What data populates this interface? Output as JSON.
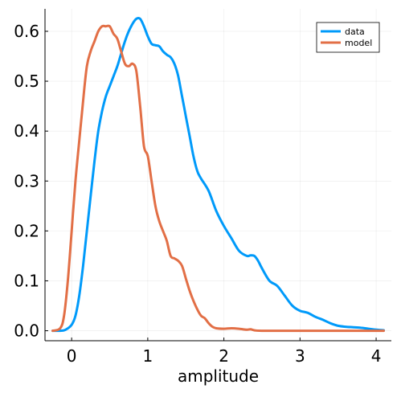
{
  "chart_data": {
    "type": "line",
    "title": "",
    "xlabel": "amplitude",
    "ylabel": "",
    "xlim": [
      -0.35,
      4.2
    ],
    "ylim": [
      -0.02,
      0.645
    ],
    "grid": true,
    "legend_position": "top-right",
    "x_ticks": [
      0,
      1,
      2,
      3,
      4
    ],
    "x_tick_labels": [
      "0",
      "1",
      "2",
      "3",
      "4"
    ],
    "y_ticks": [
      0.0,
      0.1,
      0.2,
      0.3,
      0.4,
      0.5,
      0.6
    ],
    "y_tick_labels": [
      "0.0",
      "0.1",
      "0.2",
      "0.3",
      "0.4",
      "0.5",
      "0.6"
    ],
    "series": [
      {
        "name": "data",
        "color": "#009AFA",
        "x": [
          -0.25,
          -0.15,
          -0.08,
          0.0,
          0.05,
          0.1,
          0.15,
          0.2,
          0.25,
          0.3,
          0.35,
          0.4,
          0.45,
          0.5,
          0.55,
          0.6,
          0.65,
          0.7,
          0.75,
          0.8,
          0.85,
          0.9,
          0.95,
          1.0,
          1.05,
          1.1,
          1.15,
          1.2,
          1.25,
          1.3,
          1.35,
          1.4,
          1.45,
          1.5,
          1.55,
          1.6,
          1.65,
          1.7,
          1.8,
          1.9,
          2.0,
          2.1,
          2.2,
          2.3,
          2.35,
          2.4,
          2.45,
          2.5,
          2.6,
          2.7,
          2.8,
          2.9,
          3.0,
          3.1,
          3.2,
          3.3,
          3.4,
          3.5,
          3.6,
          3.7,
          3.8,
          3.9,
          4.0,
          4.1
        ],
        "values": [
          0.0,
          0.0,
          0.002,
          0.012,
          0.03,
          0.07,
          0.13,
          0.2,
          0.27,
          0.34,
          0.4,
          0.44,
          0.47,
          0.49,
          0.51,
          0.53,
          0.555,
          0.58,
          0.6,
          0.615,
          0.625,
          0.625,
          0.61,
          0.59,
          0.575,
          0.572,
          0.57,
          0.56,
          0.553,
          0.548,
          0.535,
          0.51,
          0.47,
          0.43,
          0.39,
          0.35,
          0.32,
          0.305,
          0.28,
          0.24,
          0.21,
          0.185,
          0.16,
          0.15,
          0.151,
          0.15,
          0.14,
          0.125,
          0.1,
          0.09,
          0.07,
          0.05,
          0.04,
          0.036,
          0.028,
          0.022,
          0.015,
          0.01,
          0.008,
          0.007,
          0.006,
          0.004,
          0.002,
          0.001
        ]
      },
      {
        "name": "model",
        "color": "#E26F46",
        "x": [
          -0.25,
          -0.15,
          -0.1,
          -0.05,
          0.0,
          0.05,
          0.1,
          0.15,
          0.2,
          0.25,
          0.3,
          0.35,
          0.4,
          0.45,
          0.5,
          0.55,
          0.6,
          0.65,
          0.7,
          0.75,
          0.8,
          0.85,
          0.9,
          0.95,
          1.0,
          1.05,
          1.1,
          1.15,
          1.2,
          1.25,
          1.3,
          1.35,
          1.4,
          1.45,
          1.5,
          1.55,
          1.6,
          1.65,
          1.7,
          1.75,
          1.8,
          1.85,
          1.9,
          2.0,
          2.1,
          2.2,
          2.3,
          2.35,
          2.4,
          2.5,
          3.0,
          3.5,
          4.1
        ],
        "values": [
          0.0,
          0.005,
          0.03,
          0.1,
          0.2,
          0.3,
          0.38,
          0.46,
          0.53,
          0.56,
          0.58,
          0.6,
          0.61,
          0.61,
          0.61,
          0.595,
          0.585,
          0.56,
          0.535,
          0.53,
          0.535,
          0.52,
          0.45,
          0.37,
          0.35,
          0.3,
          0.25,
          0.22,
          0.2,
          0.18,
          0.15,
          0.145,
          0.14,
          0.13,
          0.105,
          0.08,
          0.06,
          0.043,
          0.03,
          0.025,
          0.015,
          0.008,
          0.005,
          0.004,
          0.005,
          0.004,
          0.002,
          0.003,
          0.001,
          0.0,
          0.0,
          0.0,
          0.0
        ]
      }
    ]
  }
}
